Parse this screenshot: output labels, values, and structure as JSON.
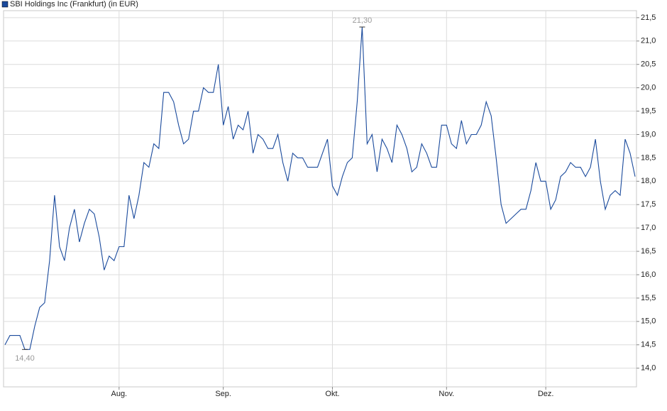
{
  "chart_data": {
    "type": "line",
    "legend": "top-left",
    "grid": true,
    "categories": [
      null,
      null,
      null,
      null,
      null,
      null,
      null,
      null,
      null,
      null,
      null,
      null,
      null,
      null,
      null,
      null,
      null,
      null,
      null,
      null,
      null,
      null,
      null,
      "Aug.",
      null,
      null,
      null,
      null,
      null,
      null,
      null,
      null,
      null,
      null,
      null,
      null,
      null,
      null,
      null,
      null,
      null,
      null,
      null,
      null,
      "Sep.",
      null,
      null,
      null,
      null,
      null,
      null,
      null,
      null,
      null,
      null,
      null,
      null,
      null,
      null,
      null,
      null,
      null,
      null,
      null,
      null,
      null,
      "Okt.",
      null,
      null,
      null,
      null,
      null,
      null,
      null,
      null,
      null,
      null,
      null,
      null,
      null,
      null,
      null,
      null,
      null,
      null,
      null,
      null,
      null,
      null,
      "Nov.",
      null,
      null,
      null,
      null,
      null,
      null,
      null,
      null,
      null,
      null,
      null,
      null,
      null,
      null,
      null,
      null,
      null,
      null,
      null,
      "Dez.",
      null,
      null,
      null,
      null,
      null,
      null,
      null,
      null,
      null,
      null,
      null,
      null,
      null,
      null,
      null,
      null,
      null,
      null
    ],
    "series": [
      {
        "name": "SBI Holdings Inc (Frankfurt) (in EUR)",
        "color": "#1a4a9c",
        "values": [
          14.5,
          14.7,
          14.7,
          14.7,
          14.4,
          14.4,
          14.9,
          15.3,
          15.4,
          16.3,
          17.7,
          16.6,
          16.3,
          17.0,
          17.4,
          16.7,
          17.1,
          17.4,
          17.3,
          16.8,
          16.1,
          16.4,
          16.3,
          16.6,
          16.6,
          17.7,
          17.2,
          17.7,
          18.4,
          18.3,
          18.8,
          18.7,
          19.9,
          19.9,
          19.7,
          19.2,
          18.8,
          18.9,
          19.5,
          19.5,
          20.0,
          19.9,
          19.9,
          20.5,
          19.2,
          19.6,
          18.9,
          19.2,
          19.1,
          19.5,
          18.6,
          19.0,
          18.9,
          18.7,
          18.7,
          19.0,
          18.4,
          18.0,
          18.6,
          18.5,
          18.5,
          18.3,
          18.3,
          18.3,
          18.6,
          18.9,
          17.9,
          17.7,
          18.1,
          18.4,
          18.5,
          19.7,
          21.3,
          18.8,
          19.0,
          18.2,
          18.9,
          18.7,
          18.4,
          19.2,
          19.0,
          18.7,
          18.2,
          18.3,
          18.8,
          18.6,
          18.3,
          18.3,
          19.2,
          19.2,
          18.8,
          18.7,
          19.3,
          18.8,
          19.0,
          19.0,
          19.2,
          19.7,
          19.4,
          18.5,
          17.5,
          17.1,
          17.2,
          17.3,
          17.4,
          17.4,
          17.8,
          18.4,
          18.0,
          18.0,
          17.4,
          17.6,
          18.1,
          18.2,
          18.4,
          18.3,
          18.3,
          18.1,
          18.3,
          18.9,
          18.0,
          17.4,
          17.7,
          17.8,
          17.7,
          18.9,
          18.6,
          18.1
        ],
        "value_labels": [
          null,
          null,
          null,
          null,
          "14,40",
          null,
          null,
          null,
          null,
          null,
          null,
          null,
          null,
          null,
          null,
          null,
          null,
          null,
          null,
          null,
          null,
          null,
          null,
          null,
          null,
          null,
          null,
          null,
          null,
          null,
          null,
          null,
          null,
          null,
          null,
          null,
          null,
          null,
          null,
          null,
          null,
          null,
          null,
          null,
          null,
          null,
          null,
          null,
          null,
          null,
          null,
          null,
          null,
          null,
          null,
          null,
          null,
          null,
          null,
          null,
          null,
          null,
          null,
          null,
          null,
          null,
          null,
          null,
          null,
          null,
          null,
          null,
          "21,30",
          null,
          null,
          null,
          null,
          null,
          null,
          null,
          null,
          null,
          null,
          null,
          null,
          null,
          null,
          null,
          null,
          null,
          null,
          null,
          null,
          null,
          null,
          null,
          null,
          null,
          null,
          null,
          null,
          null,
          null,
          null,
          null,
          null,
          null,
          null,
          null,
          null,
          null,
          null,
          null,
          null,
          null,
          null,
          null,
          null,
          null,
          null,
          null,
          null,
          null,
          null,
          null,
          null,
          null,
          null
        ]
      }
    ],
    "ylim": [
      13.6,
      21.65
    ],
    "yticks": [
      {
        "value": 14.0,
        "label": "14,0"
      },
      {
        "value": 14.5,
        "label": "14,5"
      },
      {
        "value": 15.0,
        "label": "15,0"
      },
      {
        "value": 15.5,
        "label": "15,5"
      },
      {
        "value": 16.0,
        "label": "16,0"
      },
      {
        "value": 16.5,
        "label": "16,5"
      },
      {
        "value": 17.0,
        "label": "17,0"
      },
      {
        "value": 17.5,
        "label": "17,5"
      },
      {
        "value": 18.0,
        "label": "18,0"
      },
      {
        "value": 18.5,
        "label": "18,5"
      },
      {
        "value": 19.0,
        "label": "19,0"
      },
      {
        "value": 19.5,
        "label": "19,5"
      },
      {
        "value": 20.0,
        "label": "20,0"
      },
      {
        "value": 20.5,
        "label": "20,5"
      },
      {
        "value": 21.0,
        "label": "21,0"
      },
      {
        "value": 21.5,
        "label": "21,5"
      }
    ]
  }
}
